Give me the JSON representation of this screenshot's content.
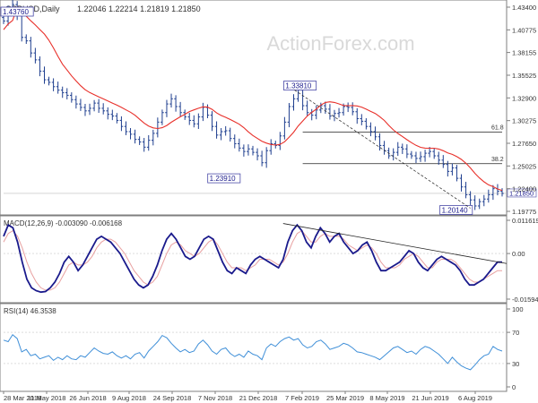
{
  "colors": {
    "background": "#ffffff",
    "candles": "#1f3f8f",
    "sma": "#e8302a",
    "macd_line": "#1a1a8c",
    "macd_signal": "#e8a0a0",
    "rsi_line": "#3f8fd8",
    "trendline": "#222222",
    "grid": "#c8c8c8",
    "axis_text": "#333333"
  },
  "header": {
    "symbol_label": "GBPUSD,Daily",
    "ohlc": "1.22046 1.22214 1.21819 1.21850"
  },
  "watermark": "ActionForex.com",
  "chart_data": [
    {
      "type": "candlestick",
      "title": "GBPUSD,Daily",
      "ohlc_last": {
        "open": 1.22046,
        "high": 1.22214,
        "low": 1.21819,
        "close": 1.2185
      },
      "current_price_label": "1.21850",
      "overlay": "moving average (red)",
      "y_ticks": [
        "1.43400",
        "1.40775",
        "1.38155",
        "1.35525",
        "1.32900",
        "1.30275",
        "1.27650",
        "1.25025",
        "1.22400",
        "1.19775"
      ],
      "ylim": [
        1.19775,
        1.434
      ],
      "x_ticks": [
        "28 Mar 2018",
        "11 May 2018",
        "26 Jun 2018",
        "9 Aug 2018",
        "24 Sep 2018",
        "7 Nov 2018",
        "21 Dec 2018",
        "7 Feb 2019",
        "25 Mar 2019",
        "8 May 2019",
        "21 Jun 2019",
        "6 Aug 2019"
      ],
      "price_labels": {
        "start": "1.43760",
        "low_jan": "1.23910",
        "high_mar": "1.33810",
        "low_aug": "1.20140"
      },
      "fib_labels": {
        "fib_382": "38.2",
        "fib_618": "61.8"
      },
      "fib_levels": {
        "fib_382": 1.2529,
        "fib_618": 1.2893
      },
      "series": [
        {
          "name": "close",
          "values": [
            1.418,
            1.431,
            1.437,
            1.425,
            1.399,
            1.395,
            1.381,
            1.373,
            1.36,
            1.35,
            1.347,
            1.342,
            1.338,
            1.335,
            1.332,
            1.327,
            1.322,
            1.318,
            1.314,
            1.317,
            1.323,
            1.317,
            1.314,
            1.31,
            1.308,
            1.303,
            1.296,
            1.29,
            1.287,
            1.281,
            1.278,
            1.272,
            1.28,
            1.288,
            1.301,
            1.312,
            1.322,
            1.328,
            1.319,
            1.312,
            1.307,
            1.303,
            1.299,
            1.307,
            1.318,
            1.309,
            1.296,
            1.286,
            1.29,
            1.291,
            1.282,
            1.276,
            1.271,
            1.267,
            1.27,
            1.266,
            1.262,
            1.254,
            1.268,
            1.276,
            1.274,
            1.285,
            1.301,
            1.319,
            1.328,
            1.338,
            1.32,
            1.312,
            1.309,
            1.315,
            1.32,
            1.316,
            1.308,
            1.311,
            1.312,
            1.319,
            1.318,
            1.313,
            1.305,
            1.302,
            1.296,
            1.29,
            1.284,
            1.274,
            1.268,
            1.262,
            1.266,
            1.272,
            1.27,
            1.264,
            1.262,
            1.259,
            1.261,
            1.265,
            1.267,
            1.262,
            1.257,
            1.252,
            1.244,
            1.248,
            1.236,
            1.226,
            1.217,
            1.211,
            1.204,
            1.209,
            1.212,
            1.217,
            1.224,
            1.221,
            1.2185
          ]
        }
      ]
    },
    {
      "type": "line",
      "title": "MACD(12,26,9) -0.003090 -0.006168",
      "y_ticks": [
        "0.011619",
        "0.00",
        "-0.015949"
      ],
      "ylim": [
        -0.01595,
        0.01162
      ],
      "series": [
        {
          "name": "MACD",
          "values": [
            0.006,
            0.01,
            0.009,
            0.004,
            -0.003,
            -0.009,
            -0.012,
            -0.013,
            -0.0135,
            -0.0133,
            -0.012,
            -0.01,
            -0.007,
            -0.003,
            -0.001,
            -0.003,
            -0.006,
            -0.004,
            -0.001,
            0.002,
            0.005,
            0.006,
            0.005,
            0.004,
            0.002,
            0.0,
            -0.003,
            -0.006,
            -0.009,
            -0.011,
            -0.012,
            -0.011,
            -0.008,
            -0.004,
            0.001,
            0.005,
            0.007,
            0.005,
            0.002,
            -0.001,
            -0.002,
            -0.001,
            0.002,
            0.005,
            0.006,
            0.005,
            0.001,
            -0.003,
            -0.006,
            -0.007,
            -0.005,
            -0.006,
            -0.007,
            -0.004,
            -0.002,
            -0.001,
            -0.002,
            -0.003,
            -0.004,
            -0.005,
            -0.002,
            0.004,
            0.008,
            0.01,
            0.008,
            0.004,
            0.002,
            0.006,
            0.009,
            0.007,
            0.004,
            0.006,
            0.007,
            0.004,
            0.002,
            0.0,
            0.001,
            0.003,
            0.004,
            0.001,
            -0.003,
            -0.006,
            -0.006,
            -0.005,
            -0.004,
            -0.003,
            -0.001,
            0.001,
            0.0,
            -0.003,
            -0.005,
            -0.006,
            -0.004,
            -0.002,
            -0.001,
            -0.002,
            -0.003,
            -0.004,
            -0.006,
            -0.009,
            -0.011,
            -0.011,
            -0.01,
            -0.009,
            -0.007,
            -0.005,
            -0.003,
            -0.003
          ]
        },
        {
          "name": "Signal",
          "values": [
            0.004,
            0.007,
            0.008,
            0.006,
            0.002,
            -0.003,
            -0.007,
            -0.01,
            -0.012,
            -0.0128,
            -0.0128,
            -0.012,
            -0.01,
            -0.007,
            -0.004,
            -0.003,
            -0.004,
            -0.004,
            -0.003,
            -0.001,
            0.002,
            0.004,
            0.005,
            0.005,
            0.004,
            0.002,
            0.0,
            -0.003,
            -0.006,
            -0.008,
            -0.01,
            -0.011,
            -0.01,
            -0.008,
            -0.004,
            0.0,
            0.003,
            0.004,
            0.003,
            0.001,
            0.0,
            -0.001,
            0.0,
            0.002,
            0.004,
            0.005,
            0.003,
            0.0,
            -0.003,
            -0.005,
            -0.005,
            -0.005,
            -0.006,
            -0.005,
            -0.004,
            -0.002,
            -0.002,
            -0.002,
            -0.003,
            -0.004,
            -0.003,
            0.0,
            0.004,
            0.007,
            0.008,
            0.006,
            0.004,
            0.004,
            0.006,
            0.007,
            0.006,
            0.006,
            0.006,
            0.005,
            0.003,
            0.002,
            0.001,
            0.002,
            0.003,
            0.002,
            0.0,
            -0.003,
            -0.005,
            -0.005,
            -0.005,
            -0.004,
            -0.002,
            -0.001,
            0.0,
            -0.001,
            -0.003,
            -0.005,
            -0.005,
            -0.003,
            -0.002,
            -0.002,
            -0.002,
            -0.003,
            -0.005,
            -0.007,
            -0.009,
            -0.01,
            -0.01,
            -0.009,
            -0.008,
            -0.007,
            -0.006,
            -0.006
          ]
        }
      ]
    },
    {
      "type": "line",
      "title": "RSI(14) 46.3538",
      "y_ticks": [
        "100",
        "70",
        "30",
        "0"
      ],
      "ylim": [
        0,
        100
      ],
      "series": [
        {
          "name": "RSI",
          "values": [
            60,
            58,
            67,
            62,
            45,
            48,
            40,
            42,
            36,
            38,
            40,
            34,
            38,
            35,
            40,
            36,
            35,
            40,
            38,
            44,
            50,
            46,
            43,
            42,
            45,
            40,
            37,
            40,
            36,
            42,
            44,
            37,
            46,
            52,
            58,
            66,
            63,
            56,
            50,
            45,
            48,
            44,
            46,
            55,
            60,
            54,
            46,
            42,
            48,
            50,
            43,
            39,
            42,
            38,
            46,
            42,
            40,
            35,
            50,
            55,
            52,
            58,
            62,
            64,
            60,
            62,
            54,
            50,
            52,
            58,
            60,
            55,
            48,
            50,
            52,
            56,
            54,
            50,
            45,
            44,
            42,
            40,
            38,
            35,
            40,
            45,
            50,
            52,
            48,
            44,
            46,
            42,
            48,
            52,
            50,
            46,
            42,
            36,
            30,
            38,
            32,
            27,
            24,
            22,
            28,
            35,
            40,
            42,
            52,
            48,
            46
          ]
        }
      ]
    }
  ]
}
